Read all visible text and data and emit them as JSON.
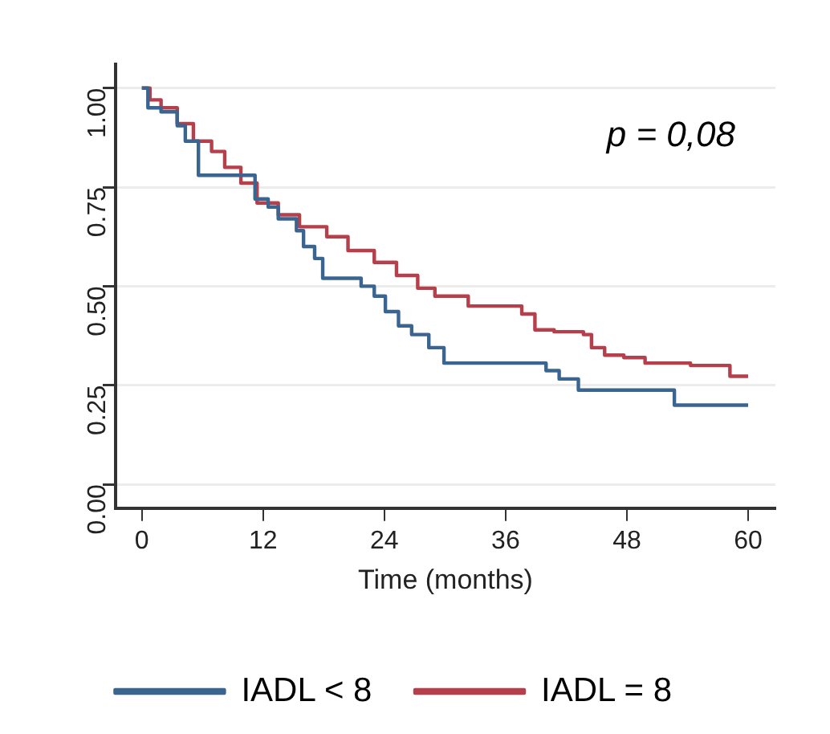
{
  "chart_data": {
    "type": "step",
    "xlabel": "Time (months)",
    "annotations": [
      "p = 0,08"
    ],
    "xlim": [
      -2.6,
      62.7
    ],
    "xticks": [
      0,
      12,
      24,
      36,
      48,
      60
    ],
    "ylim": [
      -0.06,
      1.06
    ],
    "yticks": [
      {
        "value": 0,
        "label": "0.00"
      },
      {
        "value": 0.25,
        "label": "0.25"
      },
      {
        "value": 0.5,
        "label": "0.50"
      },
      {
        "value": 0.75,
        "label": "0.75"
      },
      {
        "value": 1,
        "label": "1.00"
      }
    ],
    "grid": "y",
    "legend": "bottom",
    "line_style": "solid",
    "marker": "none",
    "series": [
      {
        "name": "IADL < 8",
        "color": "#3a6591",
        "x": [
          0,
          0.6,
          1.9,
          3.5,
          4.3,
          5.6,
          11.2,
          12.5,
          13.5,
          15.3,
          16.0,
          17.1,
          17.9,
          21.7,
          23.0,
          24.1,
          25.4,
          26.7,
          28.4,
          29.9,
          40.0,
          41.3,
          43.2,
          52.7,
          60
        ],
        "values": [
          1.0,
          0.95,
          0.94,
          0.905,
          0.866,
          0.78,
          0.72,
          0.7,
          0.67,
          0.64,
          0.6,
          0.57,
          0.52,
          0.5,
          0.475,
          0.436,
          0.4,
          0.378,
          0.345,
          0.306,
          0.287,
          0.266,
          0.238,
          0.2,
          0.2
        ]
      },
      {
        "name": "IADL = 8",
        "color": "#b5404c",
        "x": [
          0,
          0.8,
          1.9,
          3.5,
          5.1,
          6.9,
          8.2,
          9.8,
          11.4,
          13.5,
          15.6,
          18.3,
          20.4,
          23.0,
          25.2,
          27.3,
          29.0,
          32.3,
          37.6,
          38.9,
          40.8,
          43.7,
          44.5,
          45.8,
          47.7,
          49.8,
          54.3,
          58.2,
          60
        ],
        "values": [
          1.0,
          0.97,
          0.95,
          0.91,
          0.866,
          0.84,
          0.8,
          0.76,
          0.71,
          0.68,
          0.65,
          0.625,
          0.59,
          0.56,
          0.527,
          0.495,
          0.475,
          0.45,
          0.43,
          0.39,
          0.385,
          0.378,
          0.345,
          0.326,
          0.32,
          0.306,
          0.3,
          0.273,
          0.273
        ]
      }
    ]
  }
}
